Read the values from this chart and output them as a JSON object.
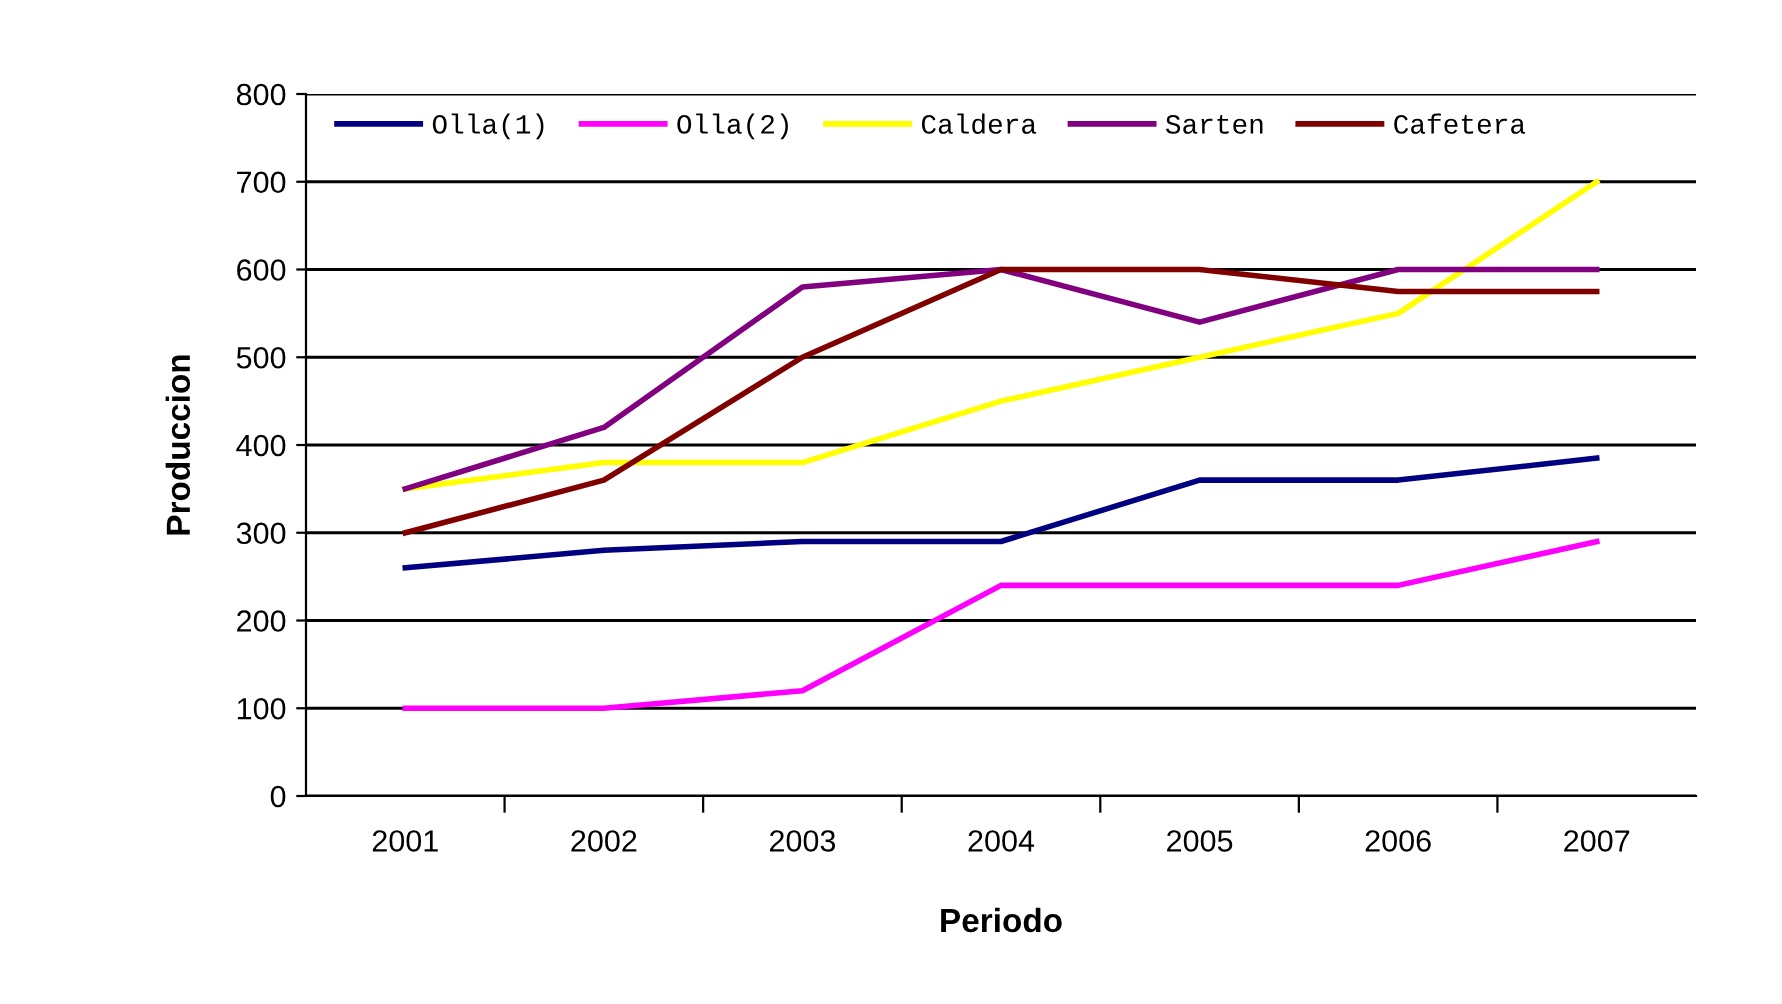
{
  "chart_data": {
    "type": "line",
    "xlabel": "Periodo",
    "ylabel": "Produccion",
    "categories": [
      "2001",
      "2002",
      "2003",
      "2004",
      "2005",
      "2006",
      "2007"
    ],
    "series": [
      {
        "name": "Olla(1)",
        "color": "#000080",
        "values": [
          260,
          280,
          290,
          290,
          360,
          360,
          385
        ]
      },
      {
        "name": "Olla(2)",
        "color": "#ff00ff",
        "values": [
          100,
          100,
          120,
          240,
          240,
          240,
          290
        ]
      },
      {
        "name": "Caldera",
        "color": "#ffff00",
        "values": [
          350,
          380,
          380,
          450,
          500,
          550,
          700
        ]
      },
      {
        "name": "Sarten",
        "color": "#800080",
        "values": [
          350,
          420,
          580,
          600,
          540,
          600,
          600
        ]
      },
      {
        "name": "Cafetera",
        "color": "#800000",
        "values": [
          300,
          360,
          500,
          600,
          600,
          575,
          575
        ]
      }
    ],
    "ylim": [
      0,
      800
    ],
    "yticks": [
      0,
      100,
      200,
      300,
      400,
      500,
      600,
      700,
      800
    ],
    "grid": "y",
    "legend": "top",
    "marker": "none",
    "line_style": "solid"
  }
}
